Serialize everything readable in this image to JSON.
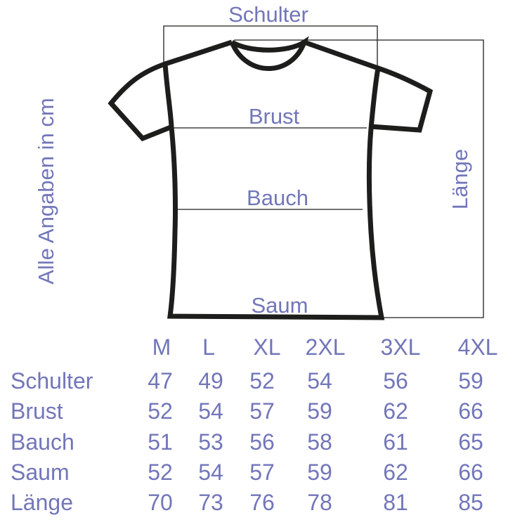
{
  "diagram": {
    "labels": {
      "shoulder": "Schulter",
      "chest": "Brust",
      "belly": "Bauch",
      "hem": "Saum",
      "length": "Länge",
      "units_note": "Alle Angaben in cm"
    },
    "colors": {
      "text": "#7276b9",
      "outline": "#1d1d1b"
    }
  },
  "table": {
    "sizes": [
      "M",
      "L",
      "XL",
      "2XL",
      "3XL",
      "4XL"
    ],
    "rows": [
      {
        "label": "Schulter",
        "values": [
          "47",
          "49",
          "52",
          "54",
          "56",
          "59"
        ]
      },
      {
        "label": "Brust",
        "values": [
          "52",
          "54",
          "57",
          "59",
          "62",
          "66"
        ]
      },
      {
        "label": "Bauch",
        "values": [
          "51",
          "53",
          "56",
          "58",
          "61",
          "65"
        ]
      },
      {
        "label": "Saum",
        "values": [
          "52",
          "54",
          "57",
          "59",
          "62",
          "66"
        ]
      },
      {
        "label": "Länge",
        "values": [
          "70",
          "73",
          "76",
          "78",
          "81",
          "85"
        ]
      }
    ]
  }
}
